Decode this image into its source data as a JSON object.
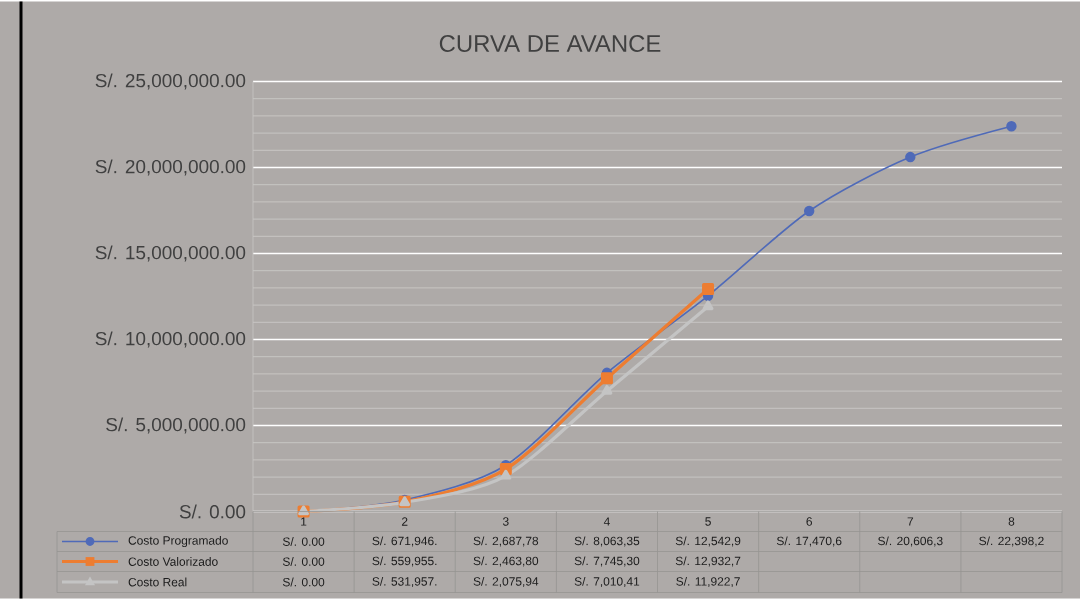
{
  "chart_data": {
    "type": "line",
    "title": "CURVA DE AVANCE",
    "categories": [
      "1",
      "2",
      "3",
      "4",
      "5",
      "6",
      "7",
      "8"
    ],
    "series": [
      {
        "name": "Costo Programado",
        "color": "#4f6ab8",
        "marker": "circle",
        "values": [
          0,
          671946,
          2687780,
          8063350,
          12542900,
          17470600,
          20606300,
          22398200
        ],
        "value_labels": [
          "S/. 0.00",
          "S/. 671,946.",
          "S/. 2,687,78",
          "S/. 8,063,35",
          "S/. 12,542,9",
          "S/. 17,470,6",
          "S/. 20,606,3",
          "S/. 22,398,2"
        ]
      },
      {
        "name": "Costo Valorizado",
        "color": "#ed7d31",
        "marker": "square",
        "values": [
          0,
          559955,
          2463800,
          7745300,
          12932700,
          null,
          null,
          null
        ],
        "value_labels": [
          "S/. 0.00",
          "S/. 559,955.",
          "S/. 2,463,80",
          "S/. 7,745,30",
          "S/. 12,932,7",
          null,
          null,
          null
        ]
      },
      {
        "name": "Costo Real",
        "color": "#c4c4c4",
        "marker": "triangle",
        "values": [
          0,
          531957,
          2075940,
          7010410,
          11922700,
          null,
          null,
          null
        ],
        "value_labels": [
          "S/. 0.00",
          "S/. 531,957.",
          "S/. 2,075,94",
          "S/. 7,010,41",
          "S/. 11,922,7",
          null,
          null,
          null
        ]
      }
    ],
    "ylim": [
      0,
      25000000
    ],
    "yticks": [
      {
        "value": 0,
        "label": "S/. 0.00"
      },
      {
        "value": 5000000,
        "label": "S/. 5,000,000.00"
      },
      {
        "value": 10000000,
        "label": "S/. 10,000,000.00"
      },
      {
        "value": 15000000,
        "label": "S/. 15,000,000.00"
      },
      {
        "value": 20000000,
        "label": "S/. 20,000,000.00"
      },
      {
        "value": 25000000,
        "label": "S/. 25,000,000.00"
      }
    ],
    "grid": "y",
    "legend": "bottom",
    "line_style": "solid"
  }
}
